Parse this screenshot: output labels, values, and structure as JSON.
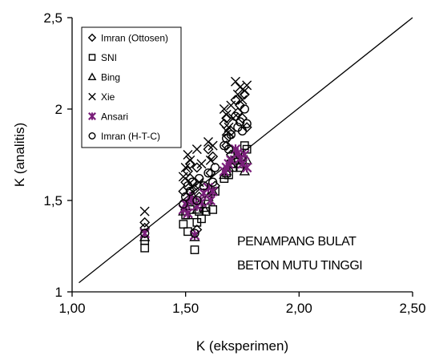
{
  "chart_data": {
    "type": "scatter",
    "title": "",
    "xlabel": "K (eksperimen)",
    "ylabel": "K (analitis)",
    "xlim": [
      1.0,
      2.5
    ],
    "ylim": [
      1.0,
      2.5
    ],
    "x_ticks": [
      "1,00",
      "1,50",
      "2,00",
      "2,50"
    ],
    "y_ticks": [
      "1",
      "1,5",
      "2",
      "2,5"
    ],
    "x_tick_values": [
      1.0,
      1.5,
      2.0,
      2.5
    ],
    "y_tick_values": [
      1.0,
      1.5,
      2.0,
      2.5
    ],
    "grid": false,
    "legend_position": "top-left",
    "reference_line": {
      "from": [
        1.03,
        1.05
      ],
      "to": [
        2.5,
        2.5
      ]
    },
    "annotation": [
      "PENAMPANG BULAT",
      "BETON MUTU TINGGI"
    ],
    "series": [
      {
        "name": "Imran (Ottosen)",
        "marker": "diamond",
        "color": "#000000",
        "points": [
          [
            1.32,
            1.38
          ],
          [
            1.32,
            1.35
          ],
          [
            1.49,
            1.55
          ],
          [
            1.5,
            1.6
          ],
          [
            1.51,
            1.66
          ],
          [
            1.52,
            1.7
          ],
          [
            1.52,
            1.62
          ],
          [
            1.54,
            1.56
          ],
          [
            1.55,
            1.68
          ],
          [
            1.55,
            1.34
          ],
          [
            1.56,
            1.52
          ],
          [
            1.57,
            1.47
          ],
          [
            1.6,
            1.78
          ],
          [
            1.61,
            1.65
          ],
          [
            1.62,
            1.74
          ],
          [
            1.63,
            1.58
          ],
          [
            1.67,
            1.92
          ],
          [
            1.68,
            1.95
          ],
          [
            1.69,
            1.85
          ],
          [
            1.7,
            1.88
          ],
          [
            1.72,
            2.05
          ],
          [
            1.73,
            1.98
          ],
          [
            1.74,
            2.02
          ],
          [
            1.75,
            1.95
          ],
          [
            1.76,
            2.08
          ],
          [
            1.77,
            1.9
          ],
          [
            1.68,
            1.8
          ],
          [
            1.7,
            1.75
          ]
        ]
      },
      {
        "name": "SNI",
        "marker": "square",
        "color": "#000000",
        "points": [
          [
            1.32,
            1.24
          ],
          [
            1.32,
            1.28
          ],
          [
            1.49,
            1.37
          ],
          [
            1.5,
            1.42
          ],
          [
            1.51,
            1.33
          ],
          [
            1.52,
            1.45
          ],
          [
            1.53,
            1.5
          ],
          [
            1.54,
            1.23
          ],
          [
            1.55,
            1.38
          ],
          [
            1.56,
            1.44
          ],
          [
            1.57,
            1.4
          ],
          [
            1.59,
            1.44
          ],
          [
            1.6,
            1.5
          ],
          [
            1.62,
            1.45
          ],
          [
            1.63,
            1.55
          ],
          [
            1.67,
            1.62
          ],
          [
            1.68,
            1.65
          ],
          [
            1.69,
            1.64
          ],
          [
            1.7,
            1.7
          ],
          [
            1.72,
            1.72
          ],
          [
            1.73,
            1.75
          ],
          [
            1.74,
            1.68
          ],
          [
            1.75,
            1.72
          ],
          [
            1.76,
            1.8
          ],
          [
            1.77,
            1.78
          ],
          [
            1.71,
            1.68
          ]
        ]
      },
      {
        "name": "Bing",
        "marker": "triangle",
        "color": "#000000",
        "points": [
          [
            1.32,
            1.3
          ],
          [
            1.49,
            1.44
          ],
          [
            1.5,
            1.47
          ],
          [
            1.51,
            1.42
          ],
          [
            1.52,
            1.5
          ],
          [
            1.53,
            1.53
          ],
          [
            1.54,
            1.3
          ],
          [
            1.55,
            1.45
          ],
          [
            1.56,
            1.48
          ],
          [
            1.58,
            1.46
          ],
          [
            1.6,
            1.52
          ],
          [
            1.62,
            1.55
          ],
          [
            1.67,
            1.64
          ],
          [
            1.68,
            1.66
          ],
          [
            1.69,
            1.68
          ],
          [
            1.7,
            1.7
          ],
          [
            1.72,
            1.73
          ],
          [
            1.73,
            1.75
          ],
          [
            1.74,
            1.7
          ],
          [
            1.75,
            1.74
          ],
          [
            1.76,
            1.66
          ],
          [
            1.77,
            1.72
          ]
        ]
      },
      {
        "name": "Xie",
        "marker": "x",
        "color": "#000000",
        "points": [
          [
            1.32,
            1.44
          ],
          [
            1.49,
            1.63
          ],
          [
            1.5,
            1.68
          ],
          [
            1.51,
            1.75
          ],
          [
            1.52,
            1.72
          ],
          [
            1.53,
            1.58
          ],
          [
            1.55,
            1.78
          ],
          [
            1.56,
            1.6
          ],
          [
            1.57,
            1.7
          ],
          [
            1.6,
            1.82
          ],
          [
            1.61,
            1.72
          ],
          [
            1.62,
            1.8
          ],
          [
            1.67,
            2.0
          ],
          [
            1.68,
            1.97
          ],
          [
            1.69,
            1.9
          ],
          [
            1.7,
            2.02
          ],
          [
            1.72,
            2.15
          ],
          [
            1.73,
            2.08
          ],
          [
            1.74,
            2.12
          ],
          [
            1.75,
            2.05
          ],
          [
            1.76,
            2.1
          ],
          [
            1.77,
            2.13
          ],
          [
            1.71,
            1.95
          ],
          [
            1.68,
            1.88
          ]
        ]
      },
      {
        "name": "Ansari",
        "marker": "asterisk",
        "color": "#7a1f7a",
        "points": [
          [
            1.32,
            1.32
          ],
          [
            1.49,
            1.45
          ],
          [
            1.5,
            1.48
          ],
          [
            1.51,
            1.43
          ],
          [
            1.52,
            1.52
          ],
          [
            1.53,
            1.5
          ],
          [
            1.54,
            1.31
          ],
          [
            1.55,
            1.47
          ],
          [
            1.57,
            1.49
          ],
          [
            1.58,
            1.54
          ],
          [
            1.6,
            1.57
          ],
          [
            1.61,
            1.5
          ],
          [
            1.62,
            1.55
          ],
          [
            1.67,
            1.66
          ],
          [
            1.68,
            1.68
          ],
          [
            1.69,
            1.7
          ],
          [
            1.7,
            1.72
          ],
          [
            1.72,
            1.78
          ],
          [
            1.73,
            1.76
          ],
          [
            1.74,
            1.73
          ],
          [
            1.75,
            1.7
          ],
          [
            1.76,
            1.75
          ],
          [
            1.77,
            1.68
          ]
        ]
      },
      {
        "name": "Imran (H-T-C)",
        "marker": "circle",
        "color": "#000000",
        "points": [
          [
            1.32,
            1.32
          ],
          [
            1.49,
            1.48
          ],
          [
            1.5,
            1.52
          ],
          [
            1.51,
            1.58
          ],
          [
            1.52,
            1.55
          ],
          [
            1.53,
            1.6
          ],
          [
            1.54,
            1.32
          ],
          [
            1.55,
            1.5
          ],
          [
            1.56,
            1.62
          ],
          [
            1.58,
            1.58
          ],
          [
            1.6,
            1.65
          ],
          [
            1.62,
            1.6
          ],
          [
            1.63,
            1.68
          ],
          [
            1.67,
            1.8
          ],
          [
            1.68,
            1.84
          ],
          [
            1.69,
            1.78
          ],
          [
            1.7,
            1.86
          ],
          [
            1.72,
            1.96
          ],
          [
            1.73,
            1.9
          ],
          [
            1.74,
            1.93
          ],
          [
            1.75,
            1.88
          ],
          [
            1.76,
            2.0
          ],
          [
            1.77,
            1.92
          ]
        ]
      }
    ]
  }
}
